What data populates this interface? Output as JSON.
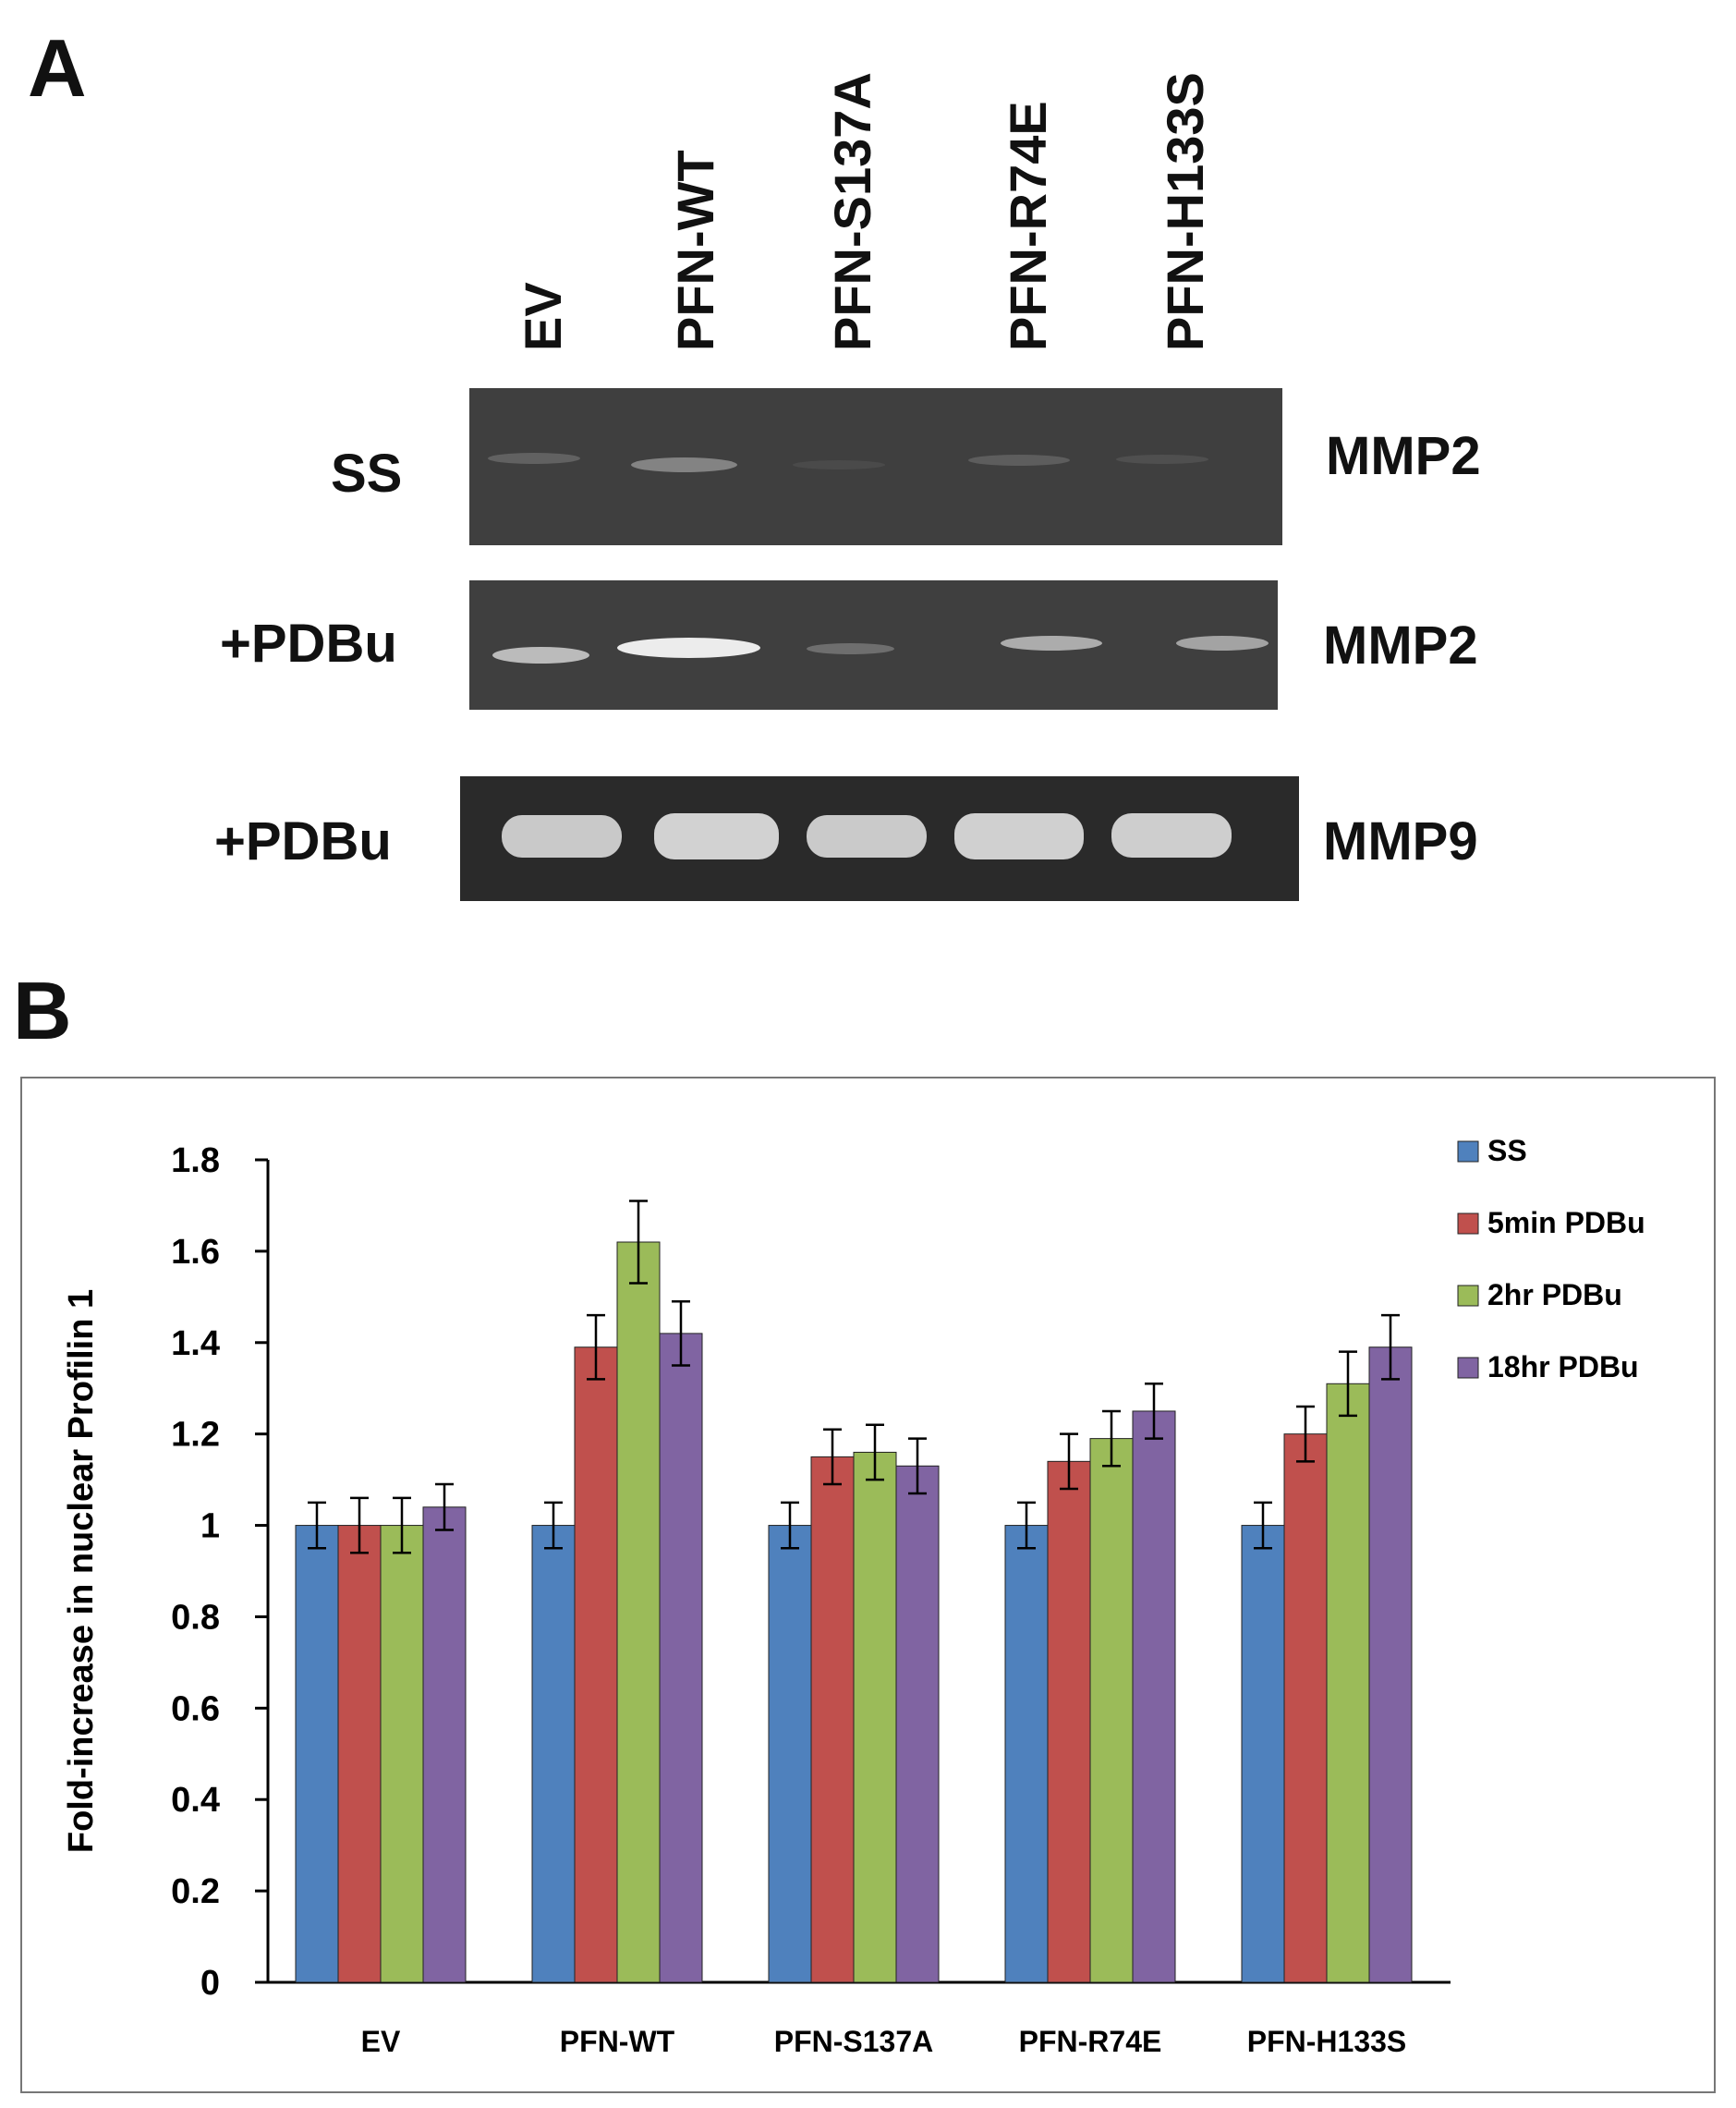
{
  "panel_a": {
    "letter": "A",
    "lanes": [
      "EV",
      "PFN-WT",
      "PFN-S137A",
      "PFN-R74E",
      "PFN-H133S"
    ],
    "rows": [
      {
        "condition": "SS",
        "target": "MMP2",
        "band_intensity": [
          0.2,
          0.55,
          0.05,
          0.25,
          0.1
        ]
      },
      {
        "condition": "+PDBu",
        "target": "MMP2",
        "band_intensity": [
          0.8,
          1.0,
          0.3,
          0.7,
          0.65
        ]
      },
      {
        "condition": "+PDBu",
        "target": "MMP9",
        "band_intensity": [
          1.0,
          1.0,
          1.0,
          1.0,
          1.0
        ]
      }
    ]
  },
  "panel_b": {
    "letter": "B"
  },
  "chart_data": {
    "type": "bar",
    "title": "",
    "xlabel": "",
    "ylabel": "Fold-increase in nuclear Profilin 1",
    "ylim": [
      0,
      1.8
    ],
    "yticks": [
      "0",
      "0.2",
      "0.4",
      "0.6",
      "0.8",
      "1",
      "1.2",
      "1.4",
      "1.6",
      "1.8"
    ],
    "categories": [
      "EV",
      "PFN-WT",
      "PFN-S137A",
      "PFN-R74E",
      "PFN-H133S"
    ],
    "series": [
      {
        "name": "SS",
        "color": "#4f81bd",
        "values": [
          1.0,
          1.0,
          1.0,
          1.0,
          1.0
        ],
        "errors": [
          0.05,
          0.05,
          0.05,
          0.05,
          0.05
        ]
      },
      {
        "name": "5min PDBu",
        "color": "#c0504d",
        "values": [
          1.0,
          1.39,
          1.15,
          1.14,
          1.2
        ],
        "errors": [
          0.06,
          0.07,
          0.06,
          0.06,
          0.06
        ]
      },
      {
        "name": "2hr PDBu",
        "color": "#9bbb59",
        "values": [
          1.0,
          1.62,
          1.16,
          1.19,
          1.31
        ],
        "errors": [
          0.06,
          0.09,
          0.06,
          0.06,
          0.07
        ]
      },
      {
        "name": "18hr PDBu",
        "color": "#8064a2",
        "values": [
          1.04,
          1.42,
          1.13,
          1.25,
          1.39
        ],
        "errors": [
          0.05,
          0.07,
          0.06,
          0.06,
          0.07
        ]
      }
    ],
    "legend_position": "top-right",
    "grid": false
  }
}
